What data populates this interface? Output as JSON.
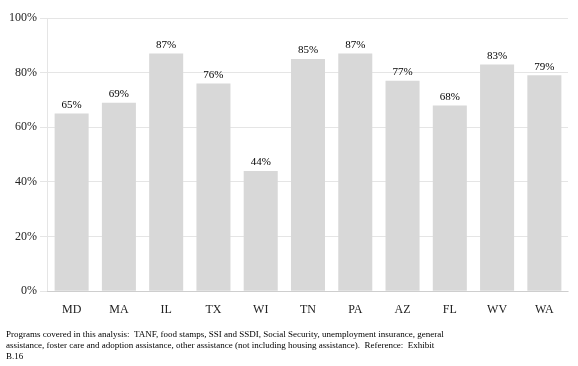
{
  "chart_data": {
    "type": "bar",
    "categories": [
      "MD",
      "MA",
      "IL",
      "TX",
      "WI",
      "TN",
      "PA",
      "AZ",
      "FL",
      "WV",
      "WA"
    ],
    "values": [
      65,
      69,
      87,
      76,
      44,
      85,
      87,
      77,
      68,
      83,
      79
    ],
    "value_labels": [
      "65%",
      "69%",
      "87%",
      "76%",
      "44%",
      "85%",
      "87%",
      "77%",
      "68%",
      "83%",
      "79%"
    ],
    "data_labels": true,
    "color": "#d8d8d8",
    "ylim": [
      0,
      100
    ],
    "yticks": [
      {
        "value": 0,
        "label": "0%"
      },
      {
        "value": 20,
        "label": "20%"
      },
      {
        "value": 40,
        "label": "40%"
      },
      {
        "value": 60,
        "label": "60%"
      },
      {
        "value": 80,
        "label": "80%"
      },
      {
        "value": 100,
        "label": "100%"
      }
    ],
    "grid": true,
    "annotations": [
      "Programs covered in this analysis:  TANF, food stamps, SSI and SSDI, Social Security, unemployment insurance, general",
      "assistance, foster care and adoption assistance, other assistance (not including housing assistance).  Reference:  Exhibit",
      "B.16"
    ]
  }
}
